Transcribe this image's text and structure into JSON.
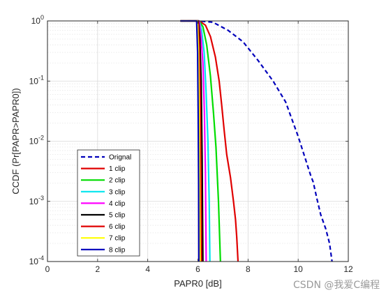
{
  "chart_data": {
    "type": "line",
    "xlabel": "PAPR0 [dB]",
    "ylabel": "CCDF (Pr[PAPR>PAPR0])",
    "xlim": [
      0,
      12
    ],
    "ylim": [
      0.0001,
      1
    ],
    "yscale": "log",
    "grid": true,
    "minor_grid": true,
    "legend_position": "lower-left",
    "x_ticks": [
      "0",
      "2",
      "4",
      "6",
      "8",
      "10",
      "12"
    ],
    "y_ticks": [
      {
        "base": "10",
        "exp": "0"
      },
      {
        "base": "10",
        "exp": "-1"
      },
      {
        "base": "10",
        "exp": "-2"
      },
      {
        "base": "10",
        "exp": "-3"
      },
      {
        "base": "10",
        "exp": "-4"
      }
    ],
    "series": [
      {
        "name": "Orignal",
        "color": "#0000bb",
        "dash": "dashed",
        "x": [
          5.3,
          6.0,
          6.6,
          7.2,
          7.8,
          8.4,
          9.0,
          9.5,
          10.0,
          10.5,
          10.6,
          10.75,
          10.9,
          11.1,
          11.25,
          11.35
        ],
        "y": [
          1,
          1,
          0.95,
          0.7,
          0.45,
          0.22,
          0.1,
          0.045,
          0.012,
          0.0027,
          0.0021,
          0.0011,
          0.0006,
          0.00035,
          0.0002,
          0.0001
        ]
      },
      {
        "name": "1 clip",
        "color": "#e00000",
        "dash": "solid",
        "x": [
          5.3,
          6.05,
          6.3,
          6.5,
          6.7,
          6.85,
          6.95,
          7.05,
          7.15,
          7.3,
          7.42,
          7.5,
          7.55,
          7.6
        ],
        "y": [
          1,
          1,
          0.85,
          0.55,
          0.25,
          0.1,
          0.04,
          0.015,
          0.006,
          0.0025,
          0.001,
          0.0005,
          0.00025,
          0.0001
        ]
      },
      {
        "name": "2 clip",
        "color": "#00dd00",
        "dash": "solid",
        "x": [
          5.3,
          6.05,
          6.2,
          6.35,
          6.5,
          6.62,
          6.72,
          6.82,
          6.9
        ],
        "y": [
          1,
          1,
          0.8,
          0.4,
          0.12,
          0.03,
          0.008,
          0.001,
          0.0001
        ]
      },
      {
        "name": "3 clip",
        "color": "#00e5ee",
        "dash": "solid",
        "x": [
          5.3,
          6.05,
          6.15,
          6.25,
          6.33,
          6.4,
          6.45,
          6.48
        ],
        "y": [
          1,
          1,
          0.7,
          0.3,
          0.06,
          0.01,
          0.001,
          0.0001
        ]
      },
      {
        "name": "4 clip",
        "color": "#ff00ff",
        "dash": "solid",
        "x": [
          5.3,
          6.05,
          6.12,
          6.2,
          6.26,
          6.3,
          6.33
        ],
        "y": [
          1,
          1,
          0.6,
          0.2,
          0.03,
          0.003,
          0.0001
        ]
      },
      {
        "name": "5 clip",
        "color": "#000000",
        "dash": "solid",
        "x": [
          5.3,
          6.02,
          6.08,
          6.13,
          6.17,
          6.2
        ],
        "y": [
          1,
          1,
          0.5,
          0.1,
          0.005,
          0.0001
        ]
      },
      {
        "name": "6 clip",
        "color": "#e00000",
        "dash": "solid",
        "x": [
          5.3,
          6.0,
          6.05,
          6.09,
          6.12,
          6.14
        ],
        "y": [
          1,
          1,
          0.45,
          0.06,
          0.003,
          0.0001
        ]
      },
      {
        "name": "7 clip",
        "color": "#ffff00",
        "dash": "solid",
        "x": [
          5.3,
          5.98,
          6.02,
          6.05,
          6.07,
          6.09
        ],
        "y": [
          1,
          1,
          0.35,
          0.04,
          0.002,
          0.0001
        ]
      },
      {
        "name": "8 clip",
        "color": "#0000bb",
        "dash": "solid",
        "x": [
          5.3,
          5.95,
          5.99,
          6.01,
          6.03,
          6.04
        ],
        "y": [
          1,
          1,
          0.3,
          0.03,
          0.002,
          0.0001
        ]
      }
    ]
  },
  "watermark": "CSDN @我爱C编程"
}
